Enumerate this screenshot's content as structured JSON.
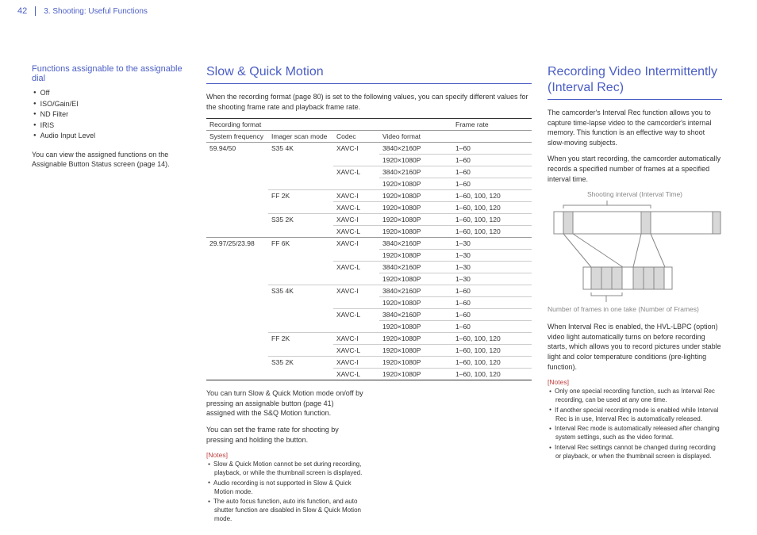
{
  "header": {
    "page_number": "42",
    "breadcrumb": "3. Shooting: Useful Functions"
  },
  "col1": {
    "heading": "Functions assignable to the assignable dial",
    "items": [
      "Off",
      "ISO/Gain/EI",
      "ND Filter",
      "IRIS",
      "Audio Input Level"
    ],
    "para": "You can view the assigned functions on the Assignable Button Status screen (page 14)."
  },
  "col2": {
    "heading": "Slow & Quick Motion",
    "intro": "When the recording format (page 80) is set to the following values, you can specify different values for the shooting frame rate and playback frame rate.",
    "table": {
      "group_header": {
        "recording_format": "Recording format",
        "frame_rate": "Frame rate"
      },
      "sub_header": {
        "sys": "System frequency",
        "scan": "Imager scan mode",
        "codec": "Codec",
        "vf": "Video format"
      },
      "rows": [
        {
          "sys": "59.94/50",
          "scan": "S35 4K",
          "codec": "XAVC-I",
          "vf": "3840×2160P",
          "fr": "1–60",
          "line": "top"
        },
        {
          "sys": "",
          "scan": "",
          "codec": "",
          "vf": "1920×1080P",
          "fr": "1–60",
          "line": "sub-vf"
        },
        {
          "sys": "",
          "scan": "",
          "codec": "XAVC-L",
          "vf": "3840×2160P",
          "fr": "1–60",
          "line": "sub-codec"
        },
        {
          "sys": "",
          "scan": "",
          "codec": "",
          "vf": "1920×1080P",
          "fr": "1–60",
          "line": "sub-vf"
        },
        {
          "sys": "",
          "scan": "FF 2K",
          "codec": "XAVC-I",
          "vf": "1920×1080P",
          "fr": "1–60, 100, 120",
          "line": "sub-scan"
        },
        {
          "sys": "",
          "scan": "",
          "codec": "XAVC-L",
          "vf": "1920×1080P",
          "fr": "1–60, 100, 120",
          "line": "sub-codec"
        },
        {
          "sys": "",
          "scan": "S35 2K",
          "codec": "XAVC-I",
          "vf": "1920×1080P",
          "fr": "1–60, 100, 120",
          "line": "sub-scan"
        },
        {
          "sys": "",
          "scan": "",
          "codec": "XAVC-L",
          "vf": "1920×1080P",
          "fr": "1–60, 100, 120",
          "line": "sub-codec"
        },
        {
          "sys": "29.97/25/23.98",
          "scan": "FF 6K",
          "codec": "XAVC-I",
          "vf": "3840×2160P",
          "fr": "1–30",
          "line": "top"
        },
        {
          "sys": "",
          "scan": "",
          "codec": "",
          "vf": "1920×1080P",
          "fr": "1–30",
          "line": "sub-vf"
        },
        {
          "sys": "",
          "scan": "",
          "codec": "XAVC-L",
          "vf": "3840×2160P",
          "fr": "1–30",
          "line": "sub-codec"
        },
        {
          "sys": "",
          "scan": "",
          "codec": "",
          "vf": "1920×1080P",
          "fr": "1–30",
          "line": "sub-vf"
        },
        {
          "sys": "",
          "scan": "S35 4K",
          "codec": "XAVC-I",
          "vf": "3840×2160P",
          "fr": "1–60",
          "line": "sub-scan"
        },
        {
          "sys": "",
          "scan": "",
          "codec": "",
          "vf": "1920×1080P",
          "fr": "1–60",
          "line": "sub-vf"
        },
        {
          "sys": "",
          "scan": "",
          "codec": "XAVC-L",
          "vf": "3840×2160P",
          "fr": "1–60",
          "line": "sub-codec"
        },
        {
          "sys": "",
          "scan": "",
          "codec": "",
          "vf": "1920×1080P",
          "fr": "1–60",
          "line": "sub-vf"
        },
        {
          "sys": "",
          "scan": "FF 2K",
          "codec": "XAVC-I",
          "vf": "1920×1080P",
          "fr": "1–60, 100, 120",
          "line": "sub-scan"
        },
        {
          "sys": "",
          "scan": "",
          "codec": "XAVC-L",
          "vf": "1920×1080P",
          "fr": "1–60, 100, 120",
          "line": "sub-codec"
        },
        {
          "sys": "",
          "scan": "S35 2K",
          "codec": "XAVC-I",
          "vf": "1920×1080P",
          "fr": "1–60, 100, 120",
          "line": "sub-scan"
        },
        {
          "sys": "",
          "scan": "",
          "codec": "XAVC-L",
          "vf": "1920×1080P",
          "fr": "1–60, 100, 120",
          "line": "sub-codec"
        }
      ]
    },
    "para1": "You can turn Slow & Quick Motion mode on/off by pressing an assignable button (page 41) assigned with the S&Q Motion function.",
    "para2": "You can set the frame rate for shooting by pressing and holding the button.",
    "notes_label": "[Notes]",
    "notes": [
      "Slow & Quick Motion cannot be set during recording, playback, or while the thumbnail screen is displayed.",
      "Audio recording is not supported in Slow & Quick Motion mode.",
      "The auto focus function, auto iris function, and auto shutter function are disabled in Slow & Quick Motion mode."
    ]
  },
  "col3": {
    "heading": "Recording Video Intermittently (Interval Rec)",
    "para1": "The camcorder's Interval Rec function allows you to capture time-lapse video to the camcorder's internal memory. This function is an effective way to shoot slow-moving subjects.",
    "para2": "When you start recording, the camcorder automatically records a specified number of frames at a specified interval time.",
    "diag_label_top": "Shooting interval (Interval Time)",
    "diag_label_bottom": "Number of frames in one take (Number of Frames)",
    "para3": "When Interval Rec is enabled, the HVL-LBPC (option) video light automatically turns on before recording starts, which allows you to record pictures under stable light and color temperature conditions (pre-lighting function).",
    "notes_label": "[Notes]",
    "notes": [
      "Only one special recording function, such as Interval Rec recording, can be used at any one time.",
      "If another special recording mode is enabled while Interval Rec is in use, Interval Rec is automatically released.",
      "Interval Rec mode is automatically released after changing system settings, such as the video format.",
      "Interval Rec settings cannot be changed during recording or playback, or when the thumbnail screen is displayed."
    ]
  },
  "colors": {
    "accent": "#4b5ec5",
    "text": "#333333",
    "notes_red": "#c04040",
    "diagram_gray": "#888888",
    "diagram_fill": "#d8d8d8",
    "background": "#ffffff"
  }
}
